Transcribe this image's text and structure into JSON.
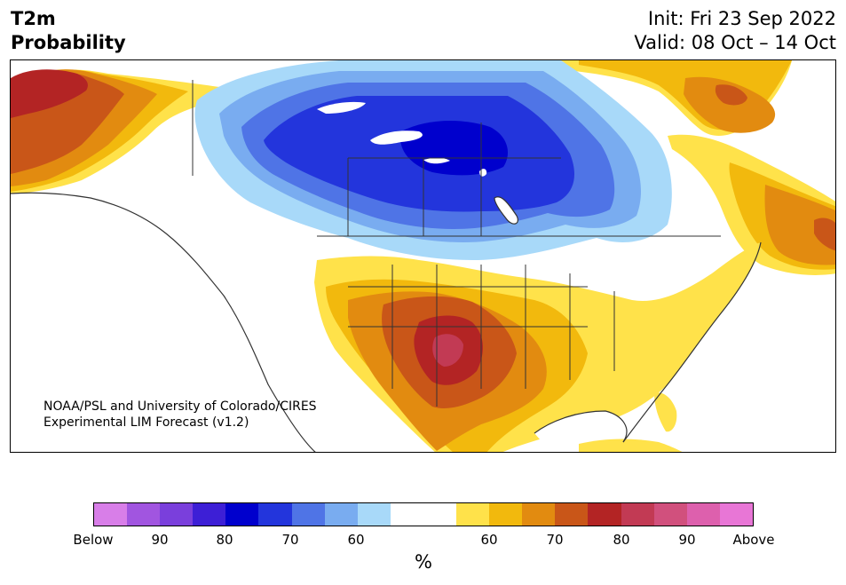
{
  "header": {
    "left_line1": "T2m",
    "left_line2": "Probability",
    "right_line1": "Init: Fri 23 Sep 2022",
    "right_line2": "Valid: 08 Oct – 14 Oct"
  },
  "credit": {
    "line1": "NOAA/PSL and University of Colorado/CIRES",
    "line2": "Experimental LIM Forecast (v1.2)"
  },
  "colorbar": {
    "colors": [
      "#d87ee8",
      "#a155e0",
      "#7a3fdc",
      "#3d1fd6",
      "#0000cd",
      "#2335dc",
      "#4f74e6",
      "#79acf0",
      "#a8d9f9",
      "#ffffff",
      "#ffffff",
      "#ffe24a",
      "#f2b90d",
      "#e28b10",
      "#c95618",
      "#b32424",
      "#c23a54",
      "#d1507d",
      "#dd60ad",
      "#e876d6"
    ],
    "labels": [
      "Below",
      "90",
      "80",
      "70",
      "60",
      "60",
      "70",
      "80",
      "90",
      "Above"
    ],
    "unit": "%"
  },
  "map": {
    "region": "North America",
    "cold_anomaly_colors": [
      "#a8d9f9",
      "#79acf0",
      "#4f74e6",
      "#2335dc",
      "#0000cd"
    ],
    "warm_anomaly_colors": [
      "#ffe24a",
      "#f2b90d",
      "#e28b10",
      "#c95618",
      "#b32424",
      "#c23a54"
    ]
  }
}
